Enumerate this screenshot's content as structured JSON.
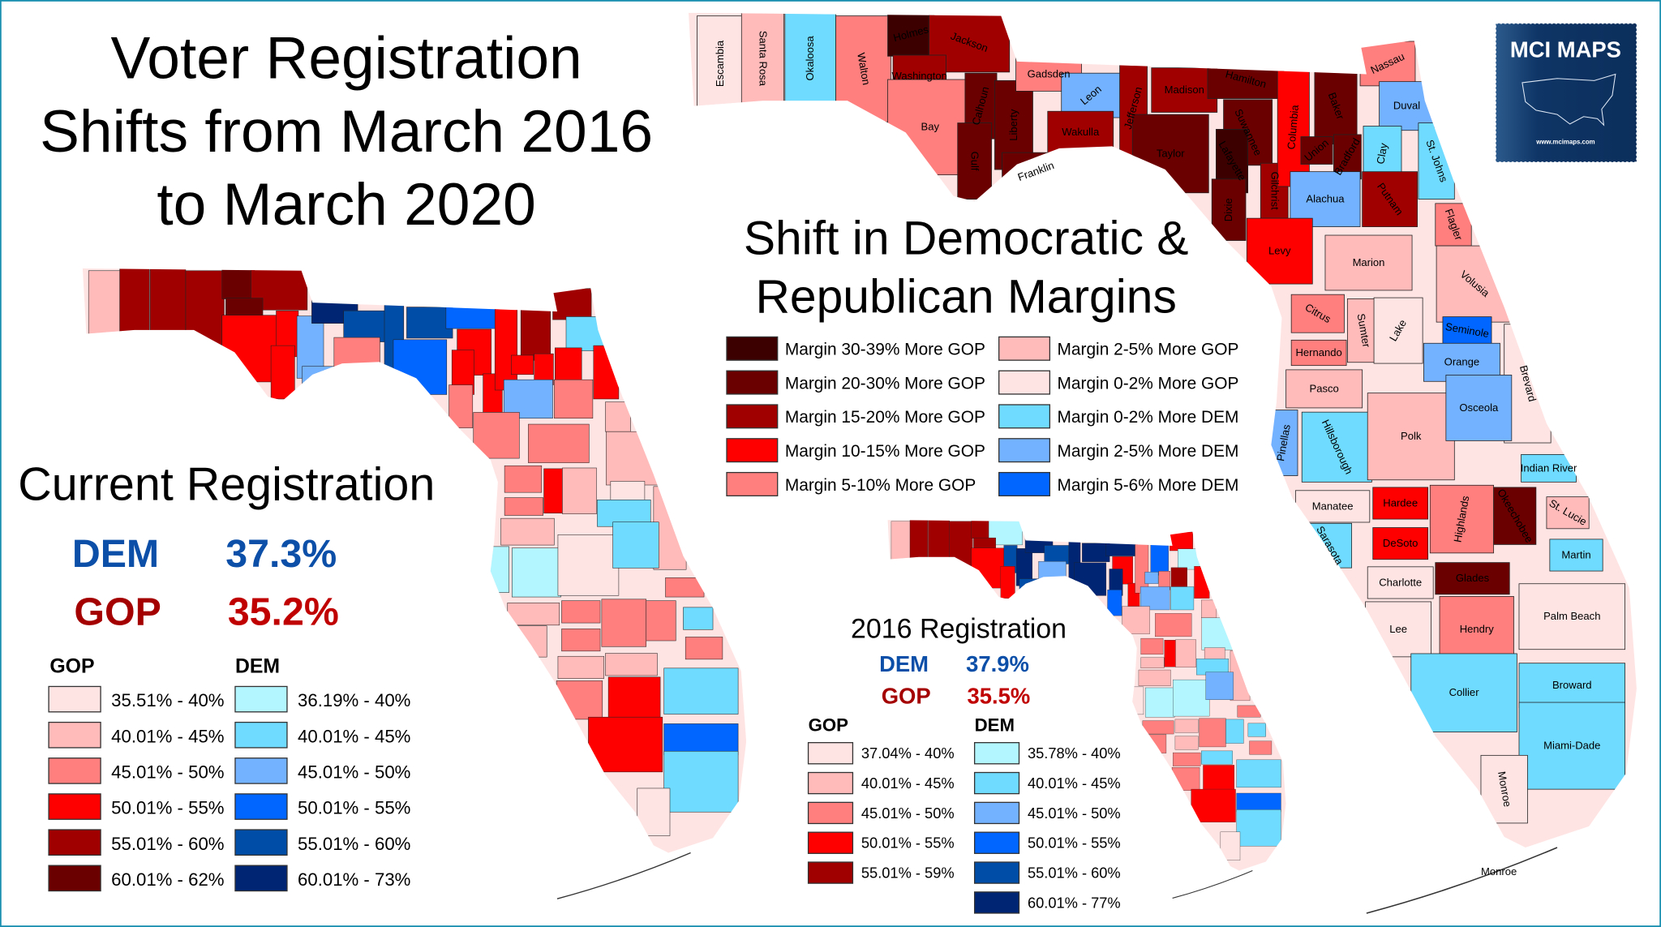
{
  "title": [
    "Voter Registration",
    "Shifts from March 2016",
    "to March 2020"
  ],
  "shift_map": {
    "title": [
      "Shift in Democratic &",
      "Republican Margins"
    ],
    "legend": [
      {
        "label": "Margin 30-39% More GOP",
        "color": "#3d0000"
      },
      {
        "label": "Margin 20-30% More GOP",
        "color": "#6b0000"
      },
      {
        "label": "Margin 15-20% More GOP",
        "color": "#a00000"
      },
      {
        "label": "Margin 10-15% More GOP",
        "color": "#ff0000"
      },
      {
        "label": "Margin 5-10% More GOP",
        "color": "#ff7f7f"
      },
      {
        "label": "Margin 2-5% More GOP",
        "color": "#ffbaba"
      },
      {
        "label": "Margin 0-2% More GOP",
        "color": "#ffe4e4"
      },
      {
        "label": "Margin 0-2% More DEM",
        "color": "#6fdcff"
      },
      {
        "label": "Margin 2-5% More DEM",
        "color": "#73b2ff"
      },
      {
        "label": "Margin 5-6% More DEM",
        "color": "#0066ff"
      }
    ],
    "keys_label": "Monroe"
  },
  "current": {
    "title": "Current Registration",
    "dem_label": "DEM",
    "dem_value": "37.3%",
    "gop_label": "GOP",
    "gop_value": "35.2%",
    "gop_header": "GOP",
    "dem_header": "DEM",
    "gop_legend": [
      {
        "label": "35.51% - 40%",
        "color": "#ffe4e4"
      },
      {
        "label": "40.01% - 45%",
        "color": "#ffbaba"
      },
      {
        "label": "45.01% - 50%",
        "color": "#ff7f7f"
      },
      {
        "label": "50.01% - 55%",
        "color": "#ff0000"
      },
      {
        "label": "55.01% - 60%",
        "color": "#a00000"
      },
      {
        "label": "60.01% - 62%",
        "color": "#6b0000"
      }
    ],
    "dem_legend": [
      {
        "label": "36.19% - 40%",
        "color": "#b3f6ff"
      },
      {
        "label": "40.01% - 45%",
        "color": "#6fdcff"
      },
      {
        "label": "45.01% - 50%",
        "color": "#73b2ff"
      },
      {
        "label": "50.01% - 55%",
        "color": "#0066ff"
      },
      {
        "label": "55.01% - 60%",
        "color": "#004da8"
      },
      {
        "label": "60.01% - 73%",
        "color": "#002673"
      }
    ]
  },
  "reg2016": {
    "title": "2016 Registration",
    "dem_label": "DEM",
    "dem_value": "37.9%",
    "gop_label": "GOP",
    "gop_value": "35.5%",
    "gop_header": "GOP",
    "dem_header": "DEM",
    "gop_legend": [
      {
        "label": "37.04% - 40%",
        "color": "#ffe4e4"
      },
      {
        "label": "40.01% - 45%",
        "color": "#ffbaba"
      },
      {
        "label": "45.01% - 50%",
        "color": "#ff7f7f"
      },
      {
        "label": "50.01% - 55%",
        "color": "#ff0000"
      },
      {
        "label": "55.01% - 59%",
        "color": "#a00000"
      }
    ],
    "dem_legend": [
      {
        "label": "35.78% - 40%",
        "color": "#b3f6ff"
      },
      {
        "label": "40.01% - 45%",
        "color": "#6fdcff"
      },
      {
        "label": "45.01% - 50%",
        "color": "#73b2ff"
      },
      {
        "label": "50.01% - 55%",
        "color": "#0066ff"
      },
      {
        "label": "55.01% - 60%",
        "color": "#004da8"
      },
      {
        "label": "60.01% - 77%",
        "color": "#002673"
      }
    ]
  },
  "logo": {
    "text": "MCI MAPS",
    "url_text": "www.mcimaps.com"
  },
  "counties": [
    {
      "name": "Escambia",
      "shift": 6,
      "cur": "g1",
      "r16": "g1"
    },
    {
      "name": "Santa Rosa",
      "shift": 5,
      "cur": "g4",
      "r16": "g4"
    },
    {
      "name": "Okaloosa",
      "shift": 7,
      "cur": "g4",
      "r16": "g4"
    },
    {
      "name": "Walton",
      "shift": 4,
      "cur": "g4",
      "r16": "g4"
    },
    {
      "name": "Holmes",
      "shift": 0,
      "cur": "g5",
      "r16": "g4"
    },
    {
      "name": "Jackson",
      "shift": 2,
      "cur": "g4",
      "r16": "d0"
    },
    {
      "name": "Washington",
      "shift": 2,
      "cur": "g5",
      "r16": "g4"
    },
    {
      "name": "Bay",
      "shift": 4,
      "cur": "g3",
      "r16": "g3"
    },
    {
      "name": "Calhoun",
      "shift": 1,
      "cur": "g3",
      "r16": "d4"
    },
    {
      "name": "Gulf",
      "shift": 1,
      "cur": "g3",
      "r16": "g3"
    },
    {
      "name": "Liberty",
      "shift": 1,
      "cur": "d2",
      "r16": "d5"
    },
    {
      "name": "Franklin",
      "shift": 1,
      "cur": "d2",
      "r16": "d4"
    },
    {
      "name": "Gadsden",
      "shift": 4,
      "cur": "d5",
      "r16": "d5"
    },
    {
      "name": "Leon",
      "shift": 8,
      "cur": "d4",
      "r16": "d4"
    },
    {
      "name": "Wakulla",
      "shift": 2,
      "cur": "g2",
      "r16": "d2"
    },
    {
      "name": "Jefferson",
      "shift": 2,
      "cur": "d4",
      "r16": "d5"
    },
    {
      "name": "Madison",
      "shift": 2,
      "cur": "d4",
      "r16": "d5"
    },
    {
      "name": "Taylor",
      "shift": 1,
      "cur": "d3",
      "r16": "d5"
    },
    {
      "name": "Hamilton",
      "shift": 1,
      "cur": "d3",
      "r16": "d5"
    },
    {
      "name": "Suwannee",
      "shift": 1,
      "cur": "g3",
      "r16": "g3"
    },
    {
      "name": "Lafayette",
      "shift": 0,
      "cur": "g3",
      "r16": "d5"
    },
    {
      "name": "Dixie",
      "shift": 1,
      "cur": "g2",
      "r16": "d3"
    },
    {
      "name": "Gilchrist",
      "shift": 2,
      "cur": "g3",
      "r16": "g3"
    },
    {
      "name": "Columbia",
      "shift": 3,
      "cur": "g3",
      "r16": "g2"
    },
    {
      "name": "Baker",
      "shift": 1,
      "cur": "g4",
      "r16": "d3"
    },
    {
      "name": "Union",
      "shift": 1,
      "cur": "g3",
      "r16": "d2"
    },
    {
      "name": "Bradford",
      "shift": 1,
      "cur": "g3",
      "r16": "g2"
    },
    {
      "name": "Nassau",
      "shift": 4,
      "cur": "g4",
      "r16": "g3"
    },
    {
      "name": "Duval",
      "shift": 8,
      "cur": "d1",
      "r16": "d0"
    },
    {
      "name": "Clay",
      "shift": 7,
      "cur": "g3",
      "r16": "g4"
    },
    {
      "name": "St. Johns",
      "shift": 7,
      "cur": "g3",
      "r16": "g3"
    },
    {
      "name": "Alachua",
      "shift": 8,
      "cur": "d2",
      "r16": "d2"
    },
    {
      "name": "Putnam",
      "shift": 2,
      "cur": "g2",
      "r16": "d1"
    },
    {
      "name": "Flagler",
      "shift": 4,
      "cur": "g1",
      "r16": "g1"
    },
    {
      "name": "Levy",
      "shift": 3,
      "cur": "g2",
      "r16": "g1"
    },
    {
      "name": "Marion",
      "shift": 5,
      "cur": "g2",
      "r16": "g2"
    },
    {
      "name": "Volusia",
      "shift": 5,
      "cur": "g1",
      "r16": "d0"
    },
    {
      "name": "Citrus",
      "shift": 4,
      "cur": "g2",
      "r16": "g2"
    },
    {
      "name": "Sumter",
      "shift": 5,
      "cur": "g3",
      "r16": "g3"
    },
    {
      "name": "Lake",
      "shift": 6,
      "cur": "g1",
      "r16": "g1"
    },
    {
      "name": "Seminole",
      "shift": 9,
      "cur": "g0",
      "r16": "g1"
    },
    {
      "name": "Hernando",
      "shift": 4,
      "cur": "g2",
      "r16": "g1"
    },
    {
      "name": "Orange",
      "shift": 8,
      "cur": "d1",
      "r16": "d1"
    },
    {
      "name": "Brevard",
      "shift": 6,
      "cur": "g1",
      "r16": "g1"
    },
    {
      "name": "Pasco",
      "shift": 5,
      "cur": "g1",
      "r16": "g1"
    },
    {
      "name": "Pinellas",
      "shift": 8,
      "cur": "d0",
      "r16": "g0"
    },
    {
      "name": "Hillsborough",
      "shift": 7,
      "cur": "d0",
      "r16": "d0"
    },
    {
      "name": "Polk",
      "shift": 5,
      "cur": "g0",
      "r16": "d0"
    },
    {
      "name": "Osceola",
      "shift": 8,
      "cur": "d1",
      "r16": "d2"
    },
    {
      "name": "Indian River",
      "shift": 7,
      "cur": "g2",
      "r16": "g2"
    },
    {
      "name": "Manatee",
      "shift": 6,
      "cur": "g1",
      "r16": "g2"
    },
    {
      "name": "Hardee",
      "shift": 3,
      "cur": "g2",
      "r16": "g1"
    },
    {
      "name": "Highlands",
      "shift": 4,
      "cur": "g2",
      "r16": "g2"
    },
    {
      "name": "Okeechobee",
      "shift": 1,
      "cur": "g2",
      "r16": "d1"
    },
    {
      "name": "St. Lucie",
      "shift": 5,
      "cur": "d1",
      "r16": "d1"
    },
    {
      "name": "Sarasota",
      "shift": 7,
      "cur": "g1",
      "r16": "g2"
    },
    {
      "name": "DeSoto",
      "shift": 3,
      "cur": "g2",
      "r16": "g1"
    },
    {
      "name": "Martin",
      "shift": 7,
      "cur": "g2",
      "r16": "g2"
    },
    {
      "name": "Charlotte",
      "shift": 6,
      "cur": "g1",
      "r16": "g2"
    },
    {
      "name": "Glades",
      "shift": 1,
      "cur": "g1",
      "r16": "d1"
    },
    {
      "name": "Palm Beach",
      "shift": 6,
      "cur": "d1",
      "r16": "d1"
    },
    {
      "name": "Lee",
      "shift": 6,
      "cur": "g2",
      "r16": "g2"
    },
    {
      "name": "Hendry",
      "shift": 4,
      "cur": "g3",
      "r16": "g3"
    },
    {
      "name": "Broward",
      "shift": 7,
      "cur": "d3",
      "r16": "d3"
    },
    {
      "name": "Collier",
      "shift": 7,
      "cur": "g3",
      "r16": "g3"
    },
    {
      "name": "Miami-Dade",
      "shift": 7,
      "cur": "d1",
      "r16": "d1"
    },
    {
      "name": "Monroe",
      "shift": 6,
      "cur": "g0",
      "r16": "g0"
    }
  ]
}
